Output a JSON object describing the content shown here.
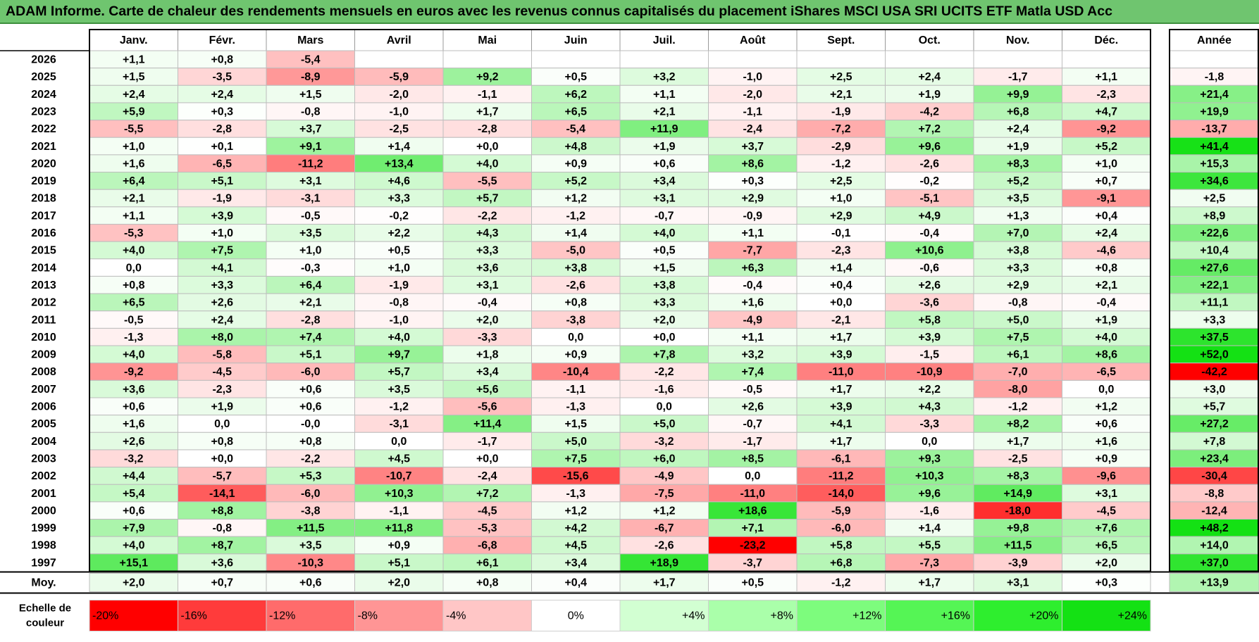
{
  "title": "ADAM Informe. Carte de chaleur des rendements mensuels en euros avec les revenus connus capitalisés du placement iShares MSCI USA SRI UCITS ETF Matla USD Acc",
  "chart_data": {
    "type": "heatmap",
    "title": "ADAM Informe. Carte de chaleur des rendements mensuels en euros avec les revenus connus capitalisés du placement iShares MSCI USA SRI UCITS ETF Matla USD Acc",
    "columns": [
      "Janv.",
      "Févr.",
      "Mars",
      "Avril",
      "Mai",
      "Juin",
      "Juil.",
      "Août",
      "Sept.",
      "Oct.",
      "Nov.",
      "Déc."
    ],
    "year_column_label": "Année",
    "rows": [
      {
        "year": "2026",
        "months": [
          "+1,1",
          "+0,8",
          "-5,4",
          "",
          "",
          "",
          "",
          "",
          "",
          "",
          "",
          ""
        ],
        "annual": ""
      },
      {
        "year": "2025",
        "months": [
          "+1,5",
          "-3,5",
          "-8,9",
          "-5,9",
          "+9,2",
          "+0,5",
          "+3,2",
          "-1,0",
          "+2,5",
          "+2,4",
          "-1,7",
          "+1,1"
        ],
        "annual": "-1,8"
      },
      {
        "year": "2024",
        "months": [
          "+2,4",
          "+2,4",
          "+1,5",
          "-2,0",
          "-1,1",
          "+6,2",
          "+1,1",
          "-2,0",
          "+2,1",
          "+1,9",
          "+9,9",
          "-2,3"
        ],
        "annual": "+21,4"
      },
      {
        "year": "2023",
        "months": [
          "+5,9",
          "+0,3",
          "-0,8",
          "-1,0",
          "+1,7",
          "+6,5",
          "+2,1",
          "-1,1",
          "-1,9",
          "-4,2",
          "+6,8",
          "+4,7"
        ],
        "annual": "+19,9"
      },
      {
        "year": "2022",
        "months": [
          "-5,5",
          "-2,8",
          "+3,7",
          "-2,5",
          "-2,8",
          "-5,4",
          "+11,9",
          "-2,4",
          "-7,2",
          "+7,2",
          "+2,4",
          "-9,2"
        ],
        "annual": "-13,7"
      },
      {
        "year": "2021",
        "months": [
          "+1,0",
          "+0,1",
          "+9,1",
          "+1,4",
          "+0,0",
          "+4,8",
          "+1,9",
          "+3,7",
          "-2,9",
          "+9,6",
          "+1,9",
          "+5,2"
        ],
        "annual": "+41,4"
      },
      {
        "year": "2020",
        "months": [
          "+1,6",
          "-6,5",
          "-11,2",
          "+13,4",
          "+4,0",
          "+0,9",
          "+0,6",
          "+8,6",
          "-1,2",
          "-2,6",
          "+8,3",
          "+1,0"
        ],
        "annual": "+15,3"
      },
      {
        "year": "2019",
        "months": [
          "+6,4",
          "+5,1",
          "+3,1",
          "+4,6",
          "-5,5",
          "+5,2",
          "+3,4",
          "+0,3",
          "+2,5",
          "-0,2",
          "+5,2",
          "+0,7"
        ],
        "annual": "+34,6"
      },
      {
        "year": "2018",
        "months": [
          "+2,1",
          "-1,9",
          "-3,1",
          "+3,3",
          "+5,7",
          "+1,2",
          "+3,1",
          "+2,9",
          "+1,0",
          "-5,1",
          "+3,5",
          "-9,1"
        ],
        "annual": "+2,5"
      },
      {
        "year": "2017",
        "months": [
          "+1,1",
          "+3,9",
          "-0,5",
          "-0,2",
          "-2,2",
          "-1,2",
          "-0,7",
          "-0,9",
          "+2,9",
          "+4,9",
          "+1,3",
          "+0,4"
        ],
        "annual": "+8,9"
      },
      {
        "year": "2016",
        "months": [
          "-5,3",
          "+1,0",
          "+3,5",
          "+2,2",
          "+4,3",
          "+1,4",
          "+4,0",
          "+1,1",
          "-0,1",
          "-0,4",
          "+7,0",
          "+2,4"
        ],
        "annual": "+22,6"
      },
      {
        "year": "2015",
        "months": [
          "+4,0",
          "+7,5",
          "+1,0",
          "+0,5",
          "+3,3",
          "-5,0",
          "+0,5",
          "-7,7",
          "-2,3",
          "+10,6",
          "+3,8",
          "-4,6"
        ],
        "annual": "+10,4"
      },
      {
        "year": "2014",
        "months": [
          "0,0",
          "+4,1",
          "-0,3",
          "+1,0",
          "+3,6",
          "+3,8",
          "+1,5",
          "+6,3",
          "+1,4",
          "-0,6",
          "+3,3",
          "+0,8"
        ],
        "annual": "+27,6"
      },
      {
        "year": "2013",
        "months": [
          "+0,8",
          "+3,3",
          "+6,4",
          "-1,9",
          "+3,1",
          "-2,6",
          "+3,8",
          "-0,4",
          "+0,4",
          "+2,6",
          "+2,9",
          "+2,1"
        ],
        "annual": "+22,1"
      },
      {
        "year": "2012",
        "months": [
          "+6,5",
          "+2,6",
          "+2,1",
          "-0,8",
          "-0,4",
          "+0,8",
          "+3,3",
          "+1,6",
          "+0,0",
          "-3,6",
          "-0,8",
          "-0,4"
        ],
        "annual": "+11,1"
      },
      {
        "year": "2011",
        "months": [
          "-0,5",
          "+2,4",
          "-2,8",
          "-1,0",
          "+2,0",
          "-3,8",
          "+2,0",
          "-4,9",
          "-2,1",
          "+5,8",
          "+5,0",
          "+1,9"
        ],
        "annual": "+3,3"
      },
      {
        "year": "2010",
        "months": [
          "-1,3",
          "+8,0",
          "+7,4",
          "+4,0",
          "-3,3",
          "0,0",
          "+0,0",
          "+1,1",
          "+1,7",
          "+3,9",
          "+7,5",
          "+4,0"
        ],
        "annual": "+37,5"
      },
      {
        "year": "2009",
        "months": [
          "+4,0",
          "-5,8",
          "+5,1",
          "+9,7",
          "+1,8",
          "+0,9",
          "+7,8",
          "+3,2",
          "+3,9",
          "-1,5",
          "+6,1",
          "+8,6"
        ],
        "annual": "+52,0"
      },
      {
        "year": "2008",
        "months": [
          "-9,2",
          "-4,5",
          "-6,0",
          "+5,7",
          "+3,4",
          "-10,4",
          "-2,2",
          "+7,4",
          "-11,0",
          "-10,9",
          "-7,0",
          "-6,5"
        ],
        "annual": "-42,2"
      },
      {
        "year": "2007",
        "months": [
          "+3,6",
          "-2,3",
          "+0,6",
          "+3,5",
          "+5,6",
          "-1,1",
          "-1,6",
          "-0,5",
          "+1,7",
          "+2,2",
          "-8,0",
          "0,0"
        ],
        "annual": "+3,0"
      },
      {
        "year": "2006",
        "months": [
          "+0,6",
          "+1,9",
          "+0,6",
          "-1,2",
          "-5,6",
          "-1,3",
          "0,0",
          "+2,6",
          "+3,9",
          "+4,3",
          "-1,2",
          "+1,2"
        ],
        "annual": "+5,7"
      },
      {
        "year": "2005",
        "months": [
          "+1,6",
          "0,0",
          "-0,0",
          "-3,1",
          "+11,4",
          "+1,5",
          "+5,0",
          "-0,7",
          "+4,1",
          "-3,3",
          "+8,2",
          "+0,6"
        ],
        "annual": "+27,2"
      },
      {
        "year": "2004",
        "months": [
          "+2,6",
          "+0,8",
          "+0,8",
          "0,0",
          "-1,7",
          "+5,0",
          "-3,2",
          "-1,7",
          "+1,7",
          "0,0",
          "+1,7",
          "+1,6"
        ],
        "annual": "+7,8"
      },
      {
        "year": "2003",
        "months": [
          "-3,2",
          "+0,0",
          "-2,2",
          "+4,5",
          "+0,0",
          "+7,5",
          "+6,0",
          "+8,5",
          "-6,1",
          "+9,3",
          "-2,5",
          "+0,9"
        ],
        "annual": "+23,4"
      },
      {
        "year": "2002",
        "months": [
          "+4,4",
          "-5,7",
          "+5,3",
          "-10,7",
          "-2,4",
          "-15,6",
          "-4,9",
          "0,0",
          "-11,2",
          "+10,3",
          "+8,3",
          "-9,6"
        ],
        "annual": "-30,4"
      },
      {
        "year": "2001",
        "months": [
          "+5,4",
          "-14,1",
          "-6,0",
          "+10,3",
          "+7,2",
          "-1,3",
          "-7,5",
          "-11,0",
          "-14,0",
          "+9,6",
          "+14,9",
          "+3,1"
        ],
        "annual": "-8,8"
      },
      {
        "year": "2000",
        "months": [
          "+0,6",
          "+8,8",
          "-3,8",
          "-1,1",
          "-4,5",
          "+1,2",
          "+1,2",
          "+18,6",
          "-5,9",
          "-1,6",
          "-18,0",
          "-4,5"
        ],
        "annual": "-12,4"
      },
      {
        "year": "1999",
        "months": [
          "+7,9",
          "-0,8",
          "+11,5",
          "+11,8",
          "-5,3",
          "+4,2",
          "-6,7",
          "+7,1",
          "-6,0",
          "+1,4",
          "+9,8",
          "+7,6"
        ],
        "annual": "+48,2"
      },
      {
        "year": "1998",
        "months": [
          "+4,0",
          "+8,7",
          "+3,5",
          "+0,9",
          "-6,8",
          "+4,5",
          "-2,6",
          "-23,2",
          "+5,8",
          "+5,5",
          "+11,5",
          "+6,5"
        ],
        "annual": "+14,0"
      },
      {
        "year": "1997",
        "months": [
          "+15,1",
          "+3,6",
          "-10,3",
          "+5,1",
          "+6,1",
          "+3,4",
          "+18,9",
          "-3,7",
          "+6,8",
          "-7,3",
          "-3,9",
          "+2,0"
        ],
        "annual": "+37,0"
      }
    ],
    "average": {
      "label": "Moy.",
      "months": [
        "+2,0",
        "+0,7",
        "+0,6",
        "+2,0",
        "+0,8",
        "+0,4",
        "+1,7",
        "+0,5",
        "-1,2",
        "+1,7",
        "+3,1",
        "+0,3"
      ],
      "annual": "+13,9"
    },
    "scale": {
      "label_line1": "Echelle de",
      "label_line2": "couleur",
      "steps": [
        "-20%",
        "-16%",
        "-12%",
        "-8%",
        "-4%",
        "0%",
        "+4%",
        "+8%",
        "+12%",
        "+16%",
        "+20%",
        "+24%"
      ],
      "colors": [
        "#ff0000",
        "#ff3b3b",
        "#ff6b6b",
        "#ff9595",
        "#ffc6c6",
        "#ffffff",
        "#d2ffd2",
        "#aaffaa",
        "#7dfc7d",
        "#55f555",
        "#2eee2e",
        "#14e114"
      ]
    },
    "colors": {
      "title_background": "#6fc56f",
      "negative_max": "#ff0000",
      "positive_max": "#14e114",
      "neutral": "#ffffff"
    }
  }
}
